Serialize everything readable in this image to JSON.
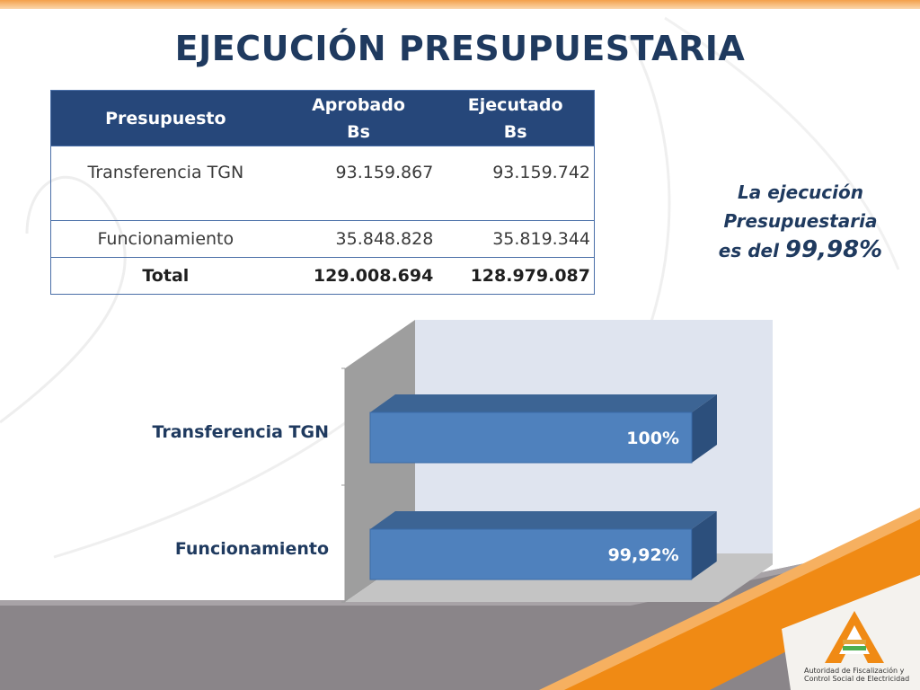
{
  "title": "EJECUCIÓN PRESUPUESTARIA",
  "table": {
    "headers": [
      "Presupuesto",
      "Aprobado",
      "Bs",
      "Ejecutado",
      "Bs"
    ],
    "rows": [
      {
        "label": "Transferencia TGN",
        "aprobado": "93.159.867",
        "ejecutado": "93.159.742"
      },
      {
        "label": "Funcionamiento",
        "aprobado": "35.848.828",
        "ejecutado": "35.819.344"
      },
      {
        "label": "Total",
        "aprobado": "129.008.694",
        "ejecutado": "128.979.087"
      }
    ]
  },
  "note": {
    "line1": "La ejecución",
    "line2": "Presupuestaria",
    "line3_prefix": "es del ",
    "line3_value": "99,98%"
  },
  "chart_data": {
    "type": "bar",
    "orientation": "horizontal",
    "categories": [
      "Transferencia TGN",
      "Funcionamiento"
    ],
    "values": [
      100,
      99.92
    ],
    "data_labels": [
      "100%",
      "99,92%"
    ],
    "xlim": [
      0,
      100
    ],
    "colors": {
      "bar": "#4f81bd",
      "bar_top": "#3c6494",
      "bar_side": "#2c4f7c"
    }
  },
  "footer": {
    "logo_line1": "Autoridad de Fiscalización y",
    "logo_line2": "Control Social de Electricidad",
    "logo_icon": "aetn-logo-icon"
  },
  "colors": {
    "title": "#1f3a5f",
    "header_bg": "#26477a",
    "accent_orange": "#f08a14"
  }
}
